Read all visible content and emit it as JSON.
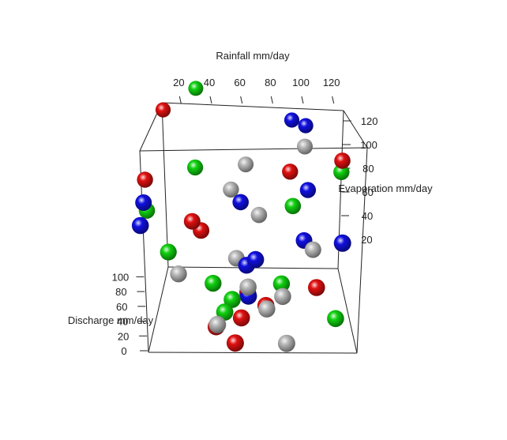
{
  "chart_data": {
    "type": "scatter3d",
    "title": "",
    "axes": {
      "x": {
        "label": "Rainfall mm/day",
        "ticks": [
          "20",
          "40",
          "60",
          "80",
          "100",
          "120"
        ],
        "range": [
          10,
          130
        ]
      },
      "y": {
        "label": "Evaporation mm/day",
        "ticks": [
          "20",
          "40",
          "60",
          "80",
          "100",
          "120"
        ],
        "range": [
          10,
          130
        ]
      },
      "z": {
        "label": "Discharge mm/day",
        "ticks": [
          "0",
          "20",
          "40",
          "60",
          "80",
          "100"
        ],
        "range": [
          0,
          110
        ]
      }
    },
    "series": [
      {
        "color": "#1010e0",
        "points": [
          {
            "x": 105,
            "y": 95,
            "z": 95
          },
          {
            "x": 113,
            "y": 95,
            "z": 92
          },
          {
            "x": 12,
            "y": 40,
            "z": 70
          },
          {
            "x": 70,
            "y": 55,
            "z": 65
          },
          {
            "x": 75,
            "y": 25,
            "z": 45
          },
          {
            "x": 70,
            "y": 30,
            "z": 40
          },
          {
            "x": 105,
            "y": 40,
            "z": 50
          },
          {
            "x": 70,
            "y": 25,
            "z": 25
          },
          {
            "x": 125,
            "y": 10,
            "z": 60
          },
          {
            "x": 8,
            "y": 20,
            "z": 65
          },
          {
            "x": 110,
            "y": 60,
            "z": 70
          }
        ]
      },
      {
        "color": "#e01010",
        "points": [
          {
            "x": 30,
            "y": 95,
            "z": 100
          },
          {
            "x": 15,
            "y": 60,
            "z": 75
          },
          {
            "x": 45,
            "y": 40,
            "z": 55
          },
          {
            "x": 40,
            "y": 40,
            "z": 60
          },
          {
            "x": 100,
            "y": 60,
            "z": 80
          },
          {
            "x": 130,
            "y": 50,
            "z": 90
          },
          {
            "x": 70,
            "y": 30,
            "z": 25
          },
          {
            "x": 80,
            "y": 25,
            "z": 20
          },
          {
            "x": 110,
            "y": 25,
            "z": 30
          },
          {
            "x": 50,
            "y": 20,
            "z": 10
          },
          {
            "x": 60,
            "y": 10,
            "z": 5
          },
          {
            "x": 65,
            "y": 20,
            "z": 15
          }
        ]
      },
      {
        "color": "#10d010",
        "points": [
          {
            "x": 50,
            "y": 100,
            "z": 110
          },
          {
            "x": 15,
            "y": 55,
            "z": 60
          },
          {
            "x": 45,
            "y": 65,
            "z": 80
          },
          {
            "x": 100,
            "y": 50,
            "z": 65
          },
          {
            "x": 130,
            "y": 60,
            "z": 80
          },
          {
            "x": 25,
            "y": 35,
            "z": 45
          },
          {
            "x": 50,
            "y": 30,
            "z": 30
          },
          {
            "x": 60,
            "y": 20,
            "z": 25
          },
          {
            "x": 55,
            "y": 15,
            "z": 20
          },
          {
            "x": 90,
            "y": 30,
            "z": 30
          },
          {
            "x": 120,
            "y": 20,
            "z": 15
          }
        ]
      },
      {
        "color": "#b8b8b8",
        "points": [
          {
            "x": 75,
            "y": 70,
            "z": 80
          },
          {
            "x": 65,
            "y": 60,
            "z": 70
          },
          {
            "x": 80,
            "y": 50,
            "z": 60
          },
          {
            "x": 110,
            "y": 70,
            "z": 90
          },
          {
            "x": 65,
            "y": 40,
            "z": 40
          },
          {
            "x": 110,
            "y": 40,
            "z": 45
          },
          {
            "x": 30,
            "y": 30,
            "z": 35
          },
          {
            "x": 90,
            "y": 25,
            "z": 25
          },
          {
            "x": 80,
            "y": 20,
            "z": 20
          },
          {
            "x": 50,
            "y": 10,
            "z": 15
          },
          {
            "x": 70,
            "y": 25,
            "z": 30
          },
          {
            "x": 90,
            "y": 10,
            "z": 5
          }
        ]
      }
    ]
  }
}
